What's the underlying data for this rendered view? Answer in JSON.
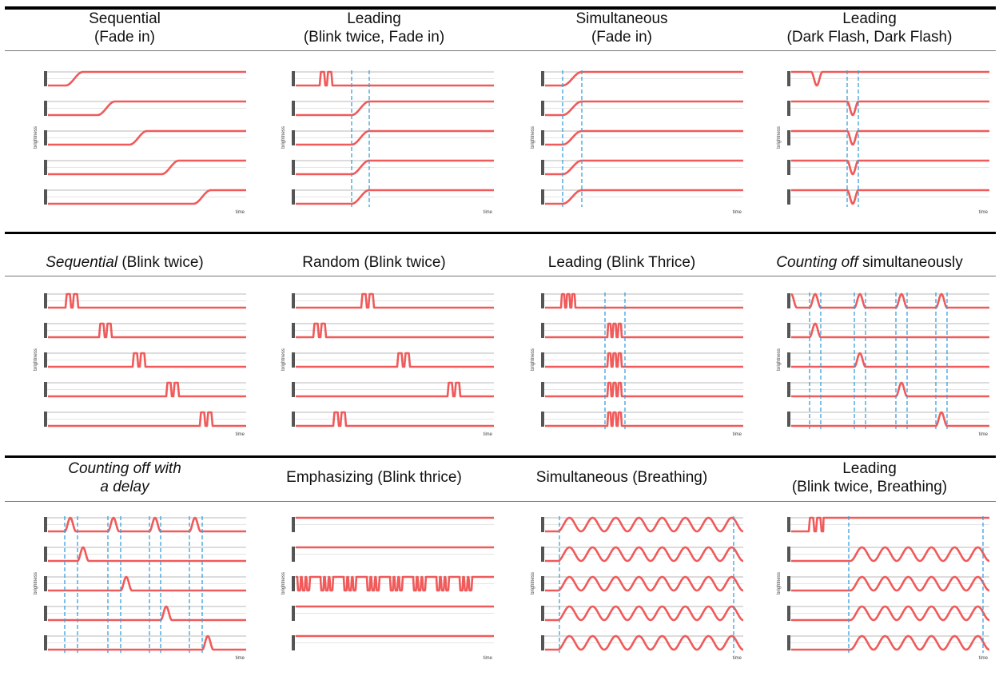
{
  "figure": {
    "rows": [
      {
        "panels": [
          {
            "title_lines": [
              "Sequential",
              "(Fade in)"
            ],
            "pattern": "fade-sequential"
          },
          {
            "title_lines": [
              "Leading",
              "(Blink twice, Fade in)"
            ],
            "pattern": "blink-then-fade"
          },
          {
            "title_lines": [
              "Simultaneous",
              "(Fade in)"
            ],
            "pattern": "fade-simultaneous"
          },
          {
            "title_lines": [
              "Leading",
              "(Dark Flash, Dark Flash)"
            ],
            "pattern": "dark-flash"
          }
        ]
      },
      {
        "panels": [
          {
            "title_italic": "Sequential",
            "title_rest": " (Blink twice)",
            "pattern": "blink-twice-sequential"
          },
          {
            "title_lines": [
              "Random (Blink twice)"
            ],
            "pattern": "blink-twice-random"
          },
          {
            "title_lines": [
              "Leading (Blink Thrice)"
            ],
            "pattern": "blink-thrice-leading"
          },
          {
            "title_italic": "Counting off",
            "title_rest": " simultaneously",
            "pattern": "counting-off"
          }
        ]
      },
      {
        "panels": [
          {
            "title_italic_lines": [
              "Counting off with",
              "a delay"
            ],
            "pattern": "counting-off-delay"
          },
          {
            "title_lines": [
              "Emphasizing (Blink thrice)"
            ],
            "pattern": "emphasizing"
          },
          {
            "title_lines": [
              "Simultaneous (Breathing)"
            ],
            "pattern": "breathing"
          },
          {
            "title_lines": [
              "Leading",
              "(Blink twice, Breathing)"
            ],
            "pattern": "blink-then-breathing"
          }
        ]
      }
    ],
    "axis": {
      "ylabel": "brightness",
      "xlabel": "time"
    },
    "colors": {
      "signal": "#f05a5a",
      "guide": "#3aa0dc",
      "grid": "#b9b9b9",
      "led": "#555555",
      "rule": "#000000"
    }
  }
}
